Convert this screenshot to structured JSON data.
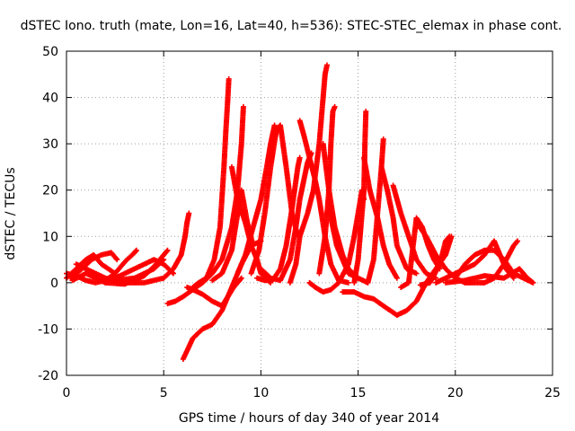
{
  "chart_data": {
    "type": "scatter",
    "title": "dSTEC Iono. truth (mate, Lon=16, Lat=40, h=536): STEC-STEC_elemax in phase cont.",
    "xlabel": "GPS time / hours of day 340 of year 2014",
    "ylabel": "dSTEC  / TECUs",
    "xlim": [
      0,
      25
    ],
    "ylim": [
      -20,
      50
    ],
    "xticks": [
      "0",
      "5",
      "10",
      "15",
      "20",
      "25"
    ],
    "yticks": [
      "-20",
      "-10",
      "0",
      "10",
      "20",
      "30",
      "40",
      "50"
    ],
    "grid": true,
    "marker": "plus",
    "color": "#ff0000",
    "series": [
      {
        "values": [
          [
            0.0,
            2
          ],
          [
            0.5,
            1.5
          ],
          [
            1.0,
            0.5
          ],
          [
            1.5,
            0
          ],
          [
            2.0,
            0.5
          ],
          [
            2.5,
            2
          ],
          [
            3.0,
            4.5
          ],
          [
            3.5,
            6.5
          ],
          [
            3.6,
            7
          ]
        ]
      },
      {
        "values": [
          [
            0.2,
            1
          ],
          [
            0.8,
            3
          ],
          [
            1.3,
            5
          ],
          [
            1.8,
            6
          ],
          [
            2.3,
            6.5
          ],
          [
            2.6,
            5
          ]
        ]
      },
      {
        "values": [
          [
            0.3,
            0.5
          ],
          [
            1.0,
            2
          ],
          [
            2.0,
            0
          ],
          [
            3.0,
            -0.3
          ],
          [
            4.0,
            1.5
          ],
          [
            4.5,
            3.5
          ],
          [
            5.0,
            6
          ],
          [
            5.2,
            7
          ]
        ]
      },
      {
        "values": [
          [
            0.0,
            1
          ],
          [
            0.5,
            3
          ],
          [
            1.0,
            5
          ],
          [
            1.4,
            6
          ],
          [
            1.8,
            4
          ],
          [
            2.5,
            2
          ]
        ]
      },
      {
        "values": [
          [
            0.5,
            4
          ],
          [
            1.0,
            3
          ],
          [
            2.0,
            1
          ],
          [
            3.0,
            0
          ],
          [
            4.0,
            0
          ],
          [
            5.0,
            1
          ],
          [
            5.5,
            3
          ],
          [
            5.9,
            6
          ],
          [
            6.1,
            10
          ],
          [
            6.2,
            13
          ],
          [
            6.3,
            15
          ]
        ]
      },
      {
        "values": [
          [
            5.0,
            5
          ],
          [
            4.5,
            3
          ],
          [
            3.5,
            1
          ],
          [
            2.5,
            0.5
          ]
        ]
      },
      {
        "values": [
          [
            2.0,
            0
          ],
          [
            3.0,
            2
          ],
          [
            4.0,
            4
          ],
          [
            4.5,
            5
          ],
          [
            5.0,
            4
          ],
          [
            5.5,
            2
          ]
        ]
      },
      {
        "values": [
          [
            5.2,
            -4.5
          ],
          [
            5.6,
            -4
          ],
          [
            6.0,
            -3
          ],
          [
            6.5,
            -1.5
          ],
          [
            7.0,
            0
          ]
        ]
      },
      {
        "values": [
          [
            6.0,
            -16.5
          ],
          [
            6.5,
            -12
          ],
          [
            7.0,
            -10
          ],
          [
            7.5,
            -9
          ],
          [
            8.0,
            -6
          ],
          [
            8.5,
            -1
          ],
          [
            9.0,
            4
          ],
          [
            9.5,
            8
          ],
          [
            10.0,
            9
          ]
        ]
      },
      {
        "values": [
          [
            6.2,
            -1
          ],
          [
            6.5,
            -1.5
          ],
          [
            7.0,
            -2.5
          ],
          [
            7.5,
            -4
          ],
          [
            8.0,
            -5
          ],
          [
            8.3,
            -3
          ],
          [
            8.6,
            -1
          ],
          [
            9.0,
            1
          ]
        ]
      },
      {
        "values": [
          [
            6.5,
            -1
          ],
          [
            6.8,
            0
          ],
          [
            7.2,
            1
          ],
          [
            7.6,
            5
          ],
          [
            7.9,
            12
          ],
          [
            8.1,
            25
          ],
          [
            8.2,
            33
          ],
          [
            8.3,
            40
          ],
          [
            8.35,
            44
          ]
        ]
      },
      {
        "values": [
          [
            7.0,
            0
          ],
          [
            7.5,
            2
          ],
          [
            8.0,
            5
          ],
          [
            8.5,
            12
          ],
          [
            8.8,
            20
          ],
          [
            9.0,
            30
          ],
          [
            9.1,
            38
          ]
        ]
      },
      {
        "values": [
          [
            8.5,
            25
          ],
          [
            8.8,
            18
          ],
          [
            9.2,
            13
          ],
          [
            9.5,
            8
          ],
          [
            9.8,
            5
          ],
          [
            10.0,
            2
          ],
          [
            10.5,
            0
          ]
        ]
      },
      {
        "values": [
          [
            7.5,
            0.5
          ],
          [
            8.0,
            2
          ],
          [
            8.5,
            7
          ],
          [
            9.0,
            20
          ],
          [
            9.3,
            13
          ],
          [
            9.6,
            8
          ]
        ]
      },
      {
        "values": [
          [
            8.8,
            2
          ],
          [
            9.2,
            6
          ],
          [
            9.6,
            12
          ],
          [
            10.0,
            18
          ],
          [
            10.3,
            25
          ],
          [
            10.5,
            30
          ],
          [
            10.7,
            34
          ]
        ]
      },
      {
        "values": [
          [
            9.5,
            2
          ],
          [
            9.9,
            7
          ],
          [
            10.2,
            15
          ],
          [
            10.5,
            25
          ],
          [
            10.8,
            33
          ],
          [
            11.0,
            34
          ],
          [
            11.3,
            25
          ],
          [
            11.6,
            15
          ],
          [
            11.9,
            10
          ]
        ]
      },
      {
        "values": [
          [
            9.8,
            1
          ],
          [
            10.2,
            0.5
          ],
          [
            10.6,
            0.5
          ],
          [
            11.0,
            3
          ],
          [
            11.3,
            8
          ],
          [
            11.6,
            16
          ],
          [
            11.9,
            25
          ],
          [
            12.0,
            27
          ]
        ]
      },
      {
        "values": [
          [
            10.0,
            3
          ],
          [
            10.5,
            1
          ],
          [
            11.0,
            0.5
          ],
          [
            11.5,
            5
          ],
          [
            11.8,
            12
          ],
          [
            12.0,
            18
          ],
          [
            12.2,
            22
          ],
          [
            12.4,
            26
          ],
          [
            12.6,
            28
          ]
        ]
      },
      {
        "values": [
          [
            11.5,
            0
          ],
          [
            11.8,
            4
          ],
          [
            12.0,
            10
          ],
          [
            12.4,
            15
          ],
          [
            12.7,
            20
          ],
          [
            13.0,
            30
          ],
          [
            13.2,
            40
          ],
          [
            13.3,
            45
          ],
          [
            13.4,
            47
          ]
        ]
      },
      {
        "values": [
          [
            12.0,
            35
          ],
          [
            12.2,
            32
          ],
          [
            12.5,
            27
          ],
          [
            12.8,
            22
          ],
          [
            13.0,
            18
          ],
          [
            13.3,
            10
          ],
          [
            13.6,
            4
          ],
          [
            14.0,
            0.5
          ],
          [
            14.5,
            0
          ]
        ]
      },
      {
        "values": [
          [
            13.0,
            2
          ],
          [
            13.3,
            10
          ],
          [
            13.5,
            20
          ],
          [
            13.6,
            30
          ],
          [
            13.7,
            37
          ],
          [
            13.8,
            38
          ]
        ]
      },
      {
        "values": [
          [
            13.2,
            30
          ],
          [
            13.5,
            20
          ],
          [
            13.8,
            12
          ],
          [
            14.2,
            6
          ],
          [
            14.5,
            3
          ],
          [
            15.0,
            1
          ],
          [
            15.5,
            0
          ]
        ]
      },
      {
        "values": [
          [
            12.5,
            0
          ],
          [
            12.8,
            -1
          ],
          [
            13.2,
            -2
          ],
          [
            13.6,
            -1.5
          ],
          [
            14.0,
            0
          ],
          [
            14.5,
            4
          ],
          [
            14.8,
            10
          ],
          [
            15.0,
            15
          ],
          [
            15.2,
            20
          ],
          [
            15.3,
            18
          ]
        ]
      },
      {
        "values": [
          [
            13.5,
            16
          ],
          [
            13.9,
            8
          ],
          [
            14.2,
            5
          ],
          [
            14.5,
            2
          ],
          [
            15.0,
            1
          ]
        ]
      },
      {
        "values": [
          [
            14.8,
            0
          ],
          [
            15.0,
            5
          ],
          [
            15.1,
            10
          ],
          [
            15.2,
            15
          ],
          [
            15.3,
            20
          ],
          [
            15.35,
            30
          ],
          [
            15.4,
            37
          ]
        ]
      },
      {
        "values": [
          [
            15.3,
            27
          ],
          [
            15.6,
            20
          ],
          [
            16.0,
            14
          ],
          [
            16.3,
            8
          ],
          [
            16.6,
            4
          ],
          [
            17.0,
            1
          ]
        ]
      },
      {
        "values": [
          [
            14.2,
            -2
          ],
          [
            14.8,
            -2
          ],
          [
            15.3,
            -3
          ],
          [
            15.8,
            -3.5
          ],
          [
            16.3,
            -5
          ],
          [
            17.0,
            -7
          ],
          [
            17.5,
            -6
          ],
          [
            18.0,
            -4
          ],
          [
            18.5,
            0
          ],
          [
            19.0,
            3
          ],
          [
            19.5,
            6
          ],
          [
            19.8,
            10
          ]
        ]
      },
      {
        "values": [
          [
            15.5,
            0
          ],
          [
            15.8,
            5
          ],
          [
            16.0,
            15
          ],
          [
            16.2,
            25
          ],
          [
            16.3,
            31
          ]
        ]
      },
      {
        "values": [
          [
            16.2,
            25
          ],
          [
            16.5,
            20
          ],
          [
            16.8,
            14
          ],
          [
            17.0,
            8
          ],
          [
            17.5,
            3
          ],
          [
            18.0,
            2
          ]
        ]
      },
      {
        "values": [
          [
            16.8,
            21
          ],
          [
            17.2,
            15
          ],
          [
            17.6,
            10
          ],
          [
            18.0,
            5
          ],
          [
            18.5,
            2
          ],
          [
            19.0,
            1
          ]
        ]
      },
      {
        "values": [
          [
            17.2,
            -1
          ],
          [
            17.6,
            0
          ],
          [
            18.0,
            14
          ],
          [
            18.3,
            12
          ],
          [
            18.6,
            8
          ],
          [
            18.9,
            5
          ],
          [
            19.2,
            3
          ]
        ]
      },
      {
        "values": [
          [
            18.0,
            13
          ],
          [
            18.5,
            10
          ],
          [
            19.0,
            6
          ],
          [
            19.5,
            3
          ],
          [
            20.0,
            1
          ],
          [
            20.5,
            0
          ]
        ]
      },
      {
        "values": [
          [
            18.2,
            -0.5
          ],
          [
            18.7,
            0
          ],
          [
            19.2,
            4
          ],
          [
            19.5,
            9
          ],
          [
            19.7,
            10
          ]
        ]
      },
      {
        "values": [
          [
            19.0,
            0
          ],
          [
            19.5,
            1
          ],
          [
            20.0,
            2
          ],
          [
            20.5,
            3
          ],
          [
            21.0,
            4
          ],
          [
            21.5,
            6
          ],
          [
            22.0,
            9
          ]
        ]
      },
      {
        "values": [
          [
            20.0,
            1
          ],
          [
            20.5,
            4
          ],
          [
            21.0,
            6
          ],
          [
            21.5,
            7
          ],
          [
            22.0,
            7
          ],
          [
            22.5,
            5
          ],
          [
            23.0,
            2
          ],
          [
            23.5,
            1
          ],
          [
            24.0,
            0
          ]
        ]
      },
      {
        "values": [
          [
            20.5,
            0
          ],
          [
            21.5,
            0
          ],
          [
            22.0,
            1
          ],
          [
            22.5,
            4
          ],
          [
            23.0,
            8
          ],
          [
            23.2,
            9
          ]
        ]
      },
      {
        "values": [
          [
            22.0,
            9
          ],
          [
            22.3,
            6
          ],
          [
            22.6,
            3
          ],
          [
            23.0,
            1
          ]
        ]
      },
      {
        "values": [
          [
            19.5,
            0
          ],
          [
            20.5,
            0.5
          ],
          [
            21.5,
            1.5
          ],
          [
            22.5,
            1
          ],
          [
            23.3,
            3
          ],
          [
            23.7,
            1
          ],
          [
            24.0,
            0
          ]
        ]
      }
    ]
  }
}
